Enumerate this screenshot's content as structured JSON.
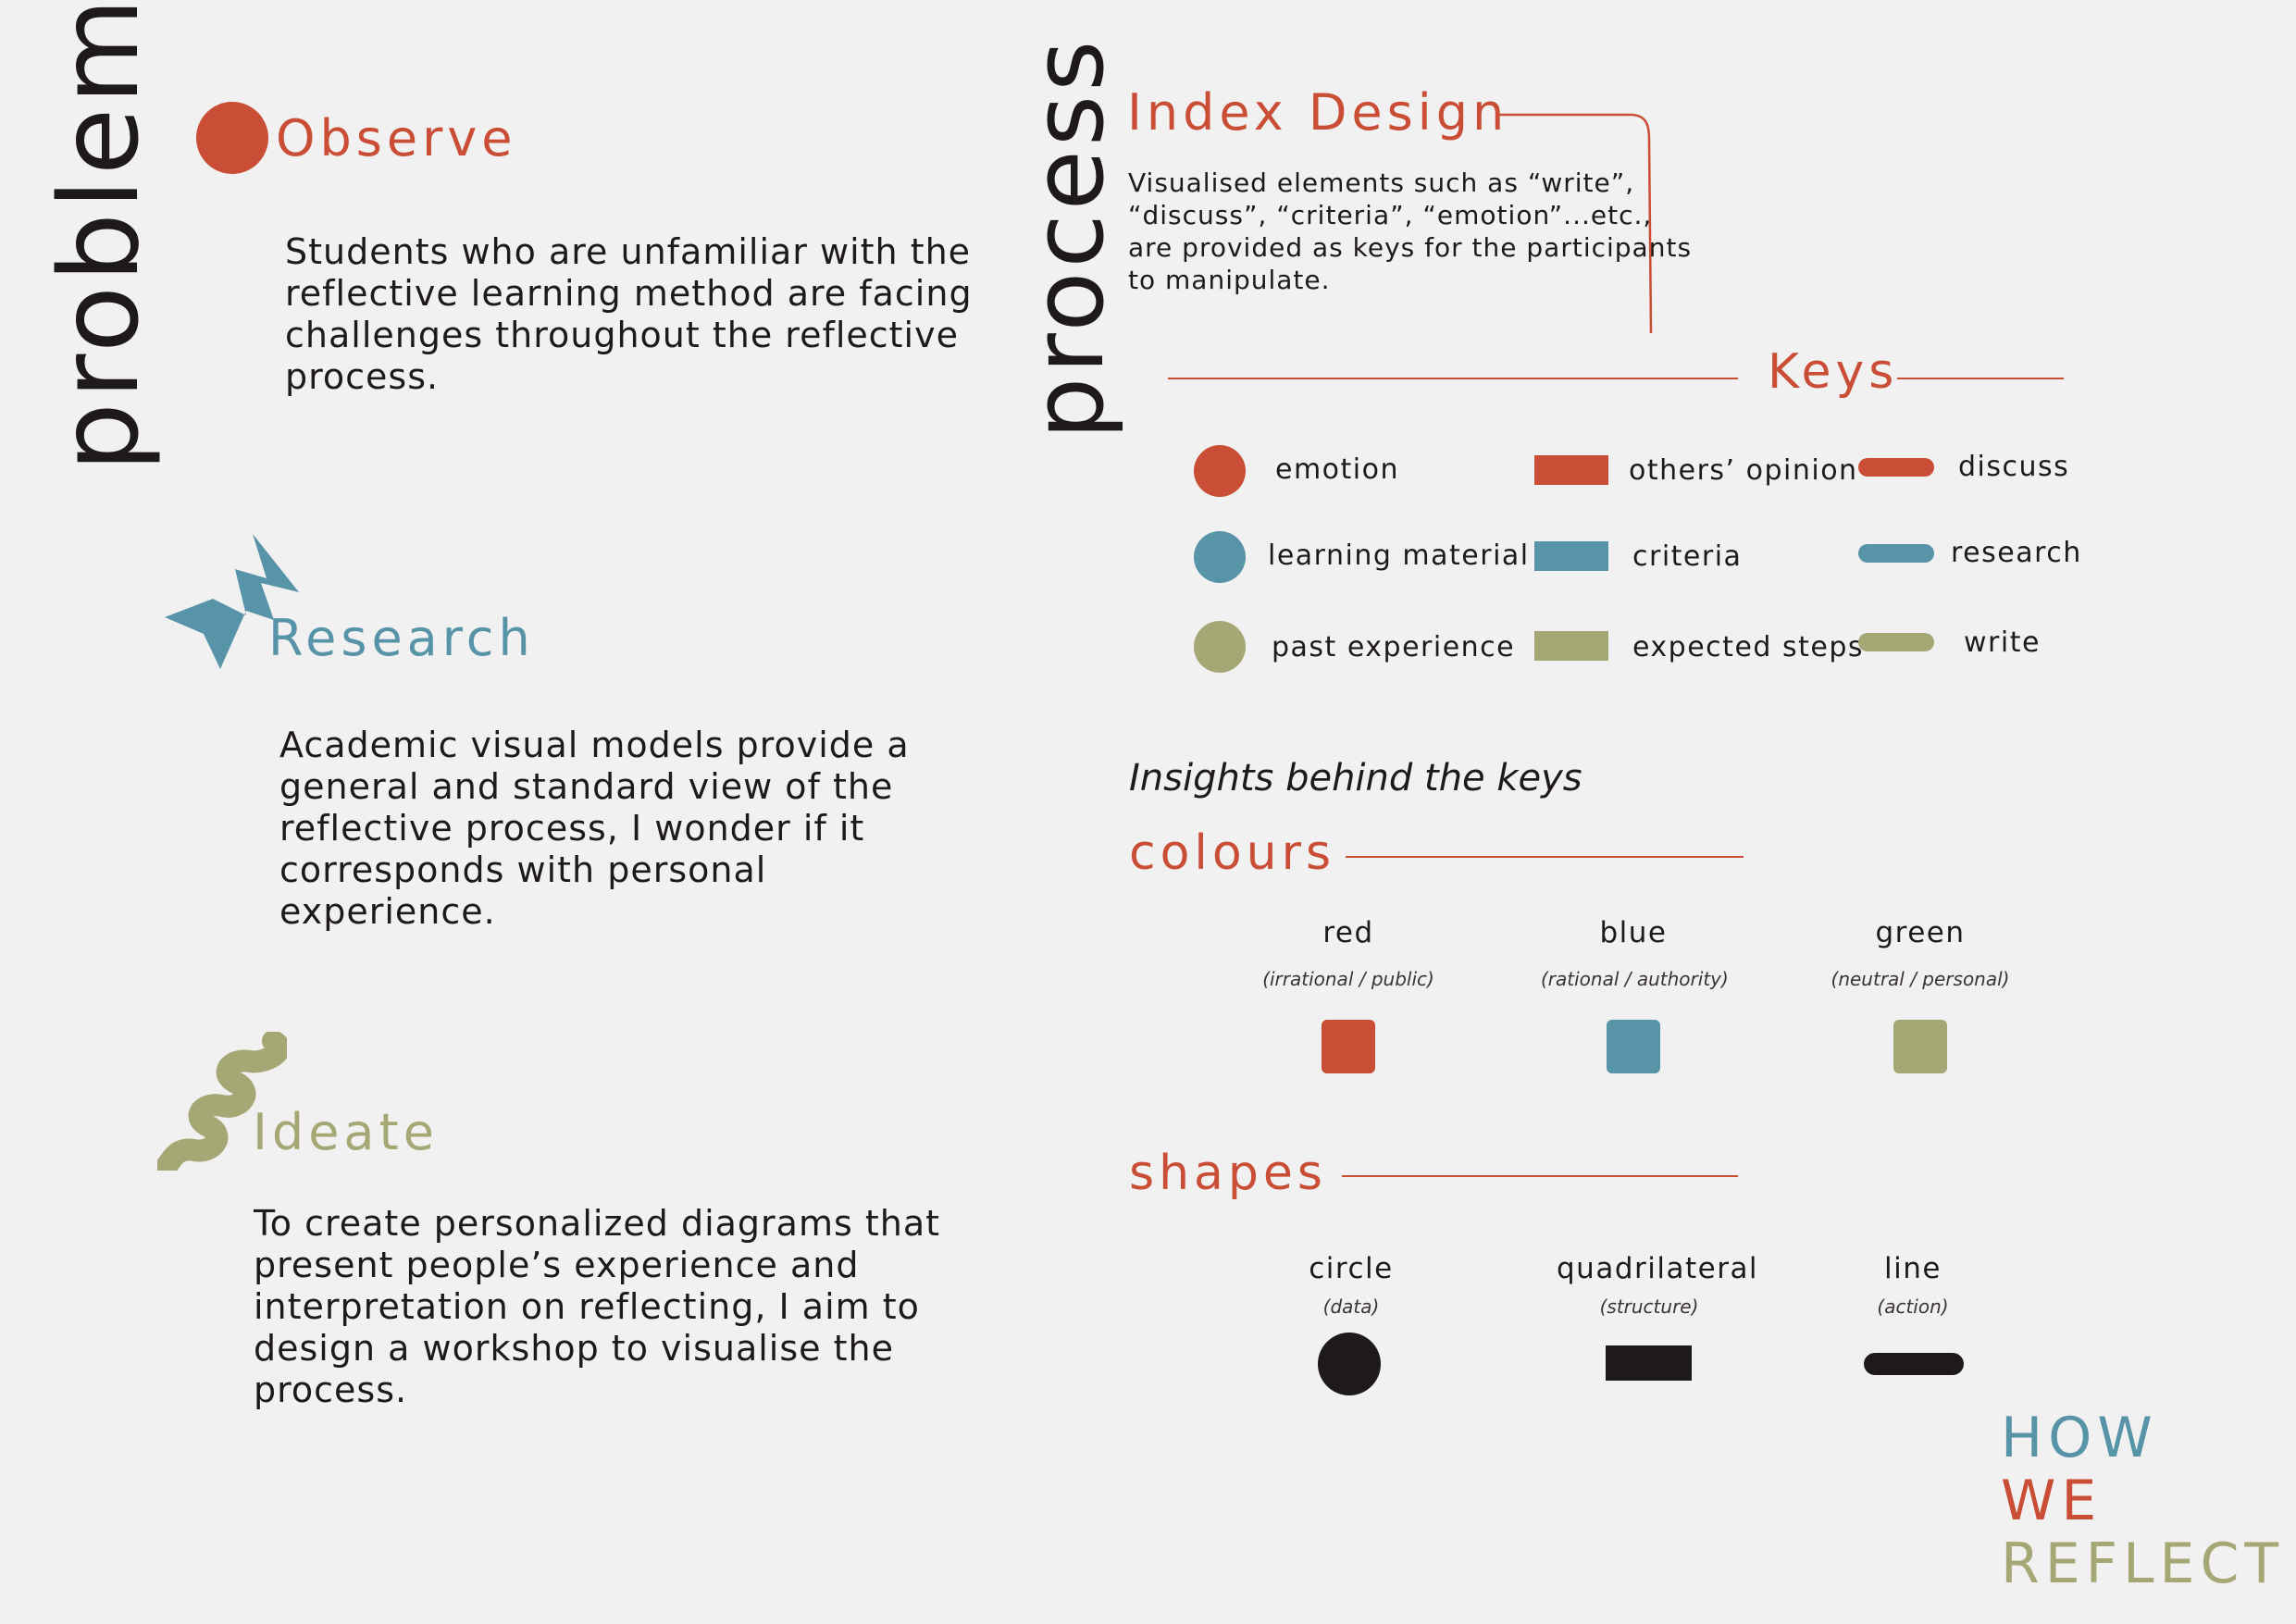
{
  "colors": {
    "red": "#c94e35",
    "blue": "#5894a8",
    "green": "#a5a875",
    "dark": "#1e1a1a",
    "bg": "#f2f1f1"
  },
  "left": {
    "heading": "problem",
    "observe": {
      "title": "Observe",
      "icon": "red-circle-icon",
      "lines": [
        "Students who are unfamiliar with the",
        "reflective learning method are facing",
        "challenges throughout the reflective",
        "process."
      ]
    },
    "research": {
      "title": "Research",
      "icon": "blue-zigzag-icon",
      "lines": [
        "Academic visual models provide a",
        "general and standard view of the",
        "reflective process, I wonder if it",
        "corresponds with personal",
        "experience."
      ]
    },
    "ideate": {
      "title": "Ideate",
      "icon": "green-squiggle-icon",
      "lines": [
        "To create personalized diagrams that",
        "present people’s experience and",
        "interpretation on reflecting, I aim to",
        "design a workshop to visualise the",
        "process."
      ]
    }
  },
  "right": {
    "heading": "process",
    "index_design": {
      "title": "Index Design",
      "lines": [
        "Visualised elements such as “write”,",
        "“discuss”, “criteria”, “emotion”...etc.,",
        "are provided as keys for the participants",
        "to manipulate."
      ]
    },
    "keys": {
      "title": "Keys",
      "circles": [
        "emotion",
        "learning material",
        "past experience"
      ],
      "rects": [
        "others’ opinion",
        "criteria",
        "expected steps"
      ],
      "lines": [
        "discuss",
        "research",
        "write"
      ]
    },
    "insights": {
      "title": "Insights behind the keys"
    },
    "colours": {
      "title": "colours",
      "items": [
        {
          "name": "red",
          "meaning": "(irrational / public)"
        },
        {
          "name": "blue",
          "meaning": "(rational / authority)"
        },
        {
          "name": "green",
          "meaning": "(neutral / personal)"
        }
      ]
    },
    "shapes": {
      "title": "shapes",
      "items": [
        {
          "name": "circle",
          "meaning": "(data)"
        },
        {
          "name": "quadrilateral",
          "meaning": "(structure)"
        },
        {
          "name": "line",
          "meaning": "(action)"
        }
      ]
    }
  },
  "logo": {
    "lines": [
      "HOW",
      "WE",
      "REFLECT"
    ]
  }
}
